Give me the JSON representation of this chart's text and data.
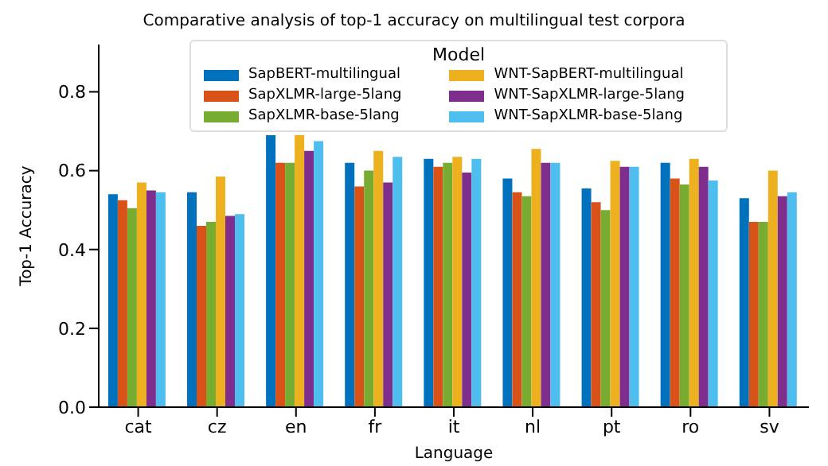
{
  "chart_data": {
    "type": "bar",
    "title": "Comparative analysis of top-1 accuracy on multilingual test corpora",
    "xlabel": "Language",
    "ylabel": "Top-1 Accuracy",
    "legend_title": "Model",
    "categories": [
      "cat",
      "cz",
      "en",
      "fr",
      "it",
      "nl",
      "pt",
      "ro",
      "sv"
    ],
    "series": [
      {
        "name": "SapBERT-multilingual",
        "color": "#0072bd",
        "values": [
          0.54,
          0.545,
          0.69,
          0.62,
          0.63,
          0.58,
          0.555,
          0.62,
          0.53
        ]
      },
      {
        "name": "SapXLMR-large-5lang",
        "color": "#d95319",
        "values": [
          0.525,
          0.46,
          0.62,
          0.56,
          0.61,
          0.545,
          0.52,
          0.58,
          0.47
        ]
      },
      {
        "name": "SapXLMR-base-5lang",
        "color": "#77ac30",
        "values": [
          0.505,
          0.47,
          0.62,
          0.6,
          0.62,
          0.535,
          0.5,
          0.565,
          0.47
        ]
      },
      {
        "name": "WNT-SapBERT-multilingual",
        "color": "#edb120",
        "values": [
          0.57,
          0.585,
          0.69,
          0.65,
          0.635,
          0.655,
          0.625,
          0.63,
          0.6
        ]
      },
      {
        "name": "WNT-SapXLMR-large-5lang",
        "color": "#7e2f8e",
        "values": [
          0.55,
          0.485,
          0.65,
          0.57,
          0.595,
          0.62,
          0.61,
          0.61,
          0.535
        ]
      },
      {
        "name": "WNT-SapXLMR-base-5lang",
        "color": "#4dbeee",
        "values": [
          0.545,
          0.49,
          0.675,
          0.635,
          0.63,
          0.62,
          0.61,
          0.575,
          0.545
        ]
      }
    ],
    "ylim": [
      0,
      0.92
    ],
    "yticks": [
      {
        "value": 0,
        "label": "0.0"
      },
      0.2,
      0.4,
      0.6,
      0.8
    ],
    "legend": "top"
  }
}
